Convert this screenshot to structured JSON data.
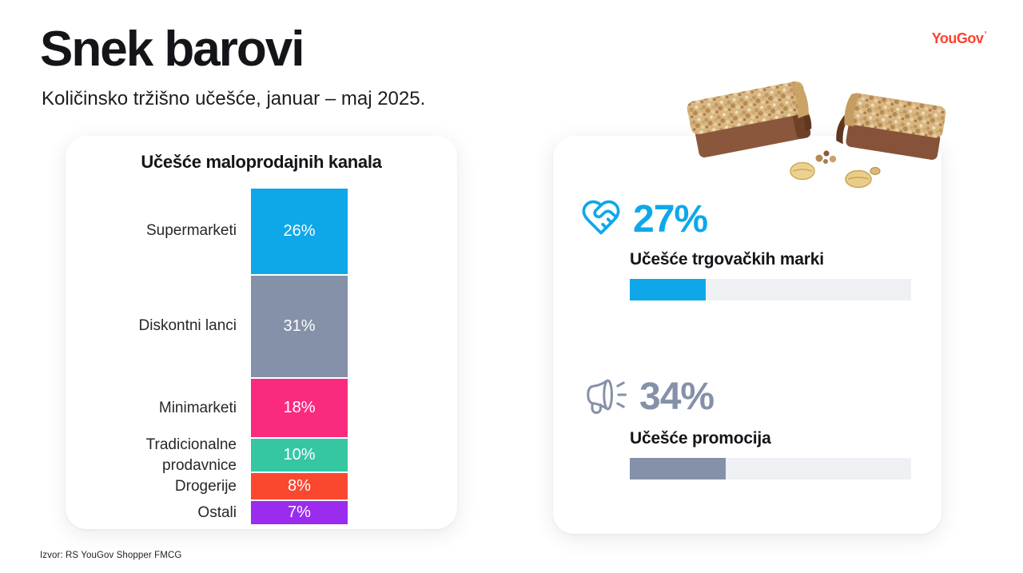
{
  "header": {
    "title": "Snek barovi",
    "subtitle": "Količinsko tržišno učešće, januar – maj 2025.",
    "logo": "YouGov",
    "logo_color": "#ff412e"
  },
  "chart_data": {
    "type": "bar",
    "stacked": true,
    "orientation": "vertical",
    "title": "Učešće maloprodajnih kanala",
    "categories": [
      "Supermarketi",
      "Diskontni lanci",
      "Minimarketi",
      "Tradicionalne prodavnice",
      "Drogerije",
      "Ostali"
    ],
    "values": [
      26,
      31,
      18,
      10,
      8,
      7
    ],
    "value_labels": [
      "26%",
      "31%",
      "18%",
      "10%",
      "8%",
      "7%"
    ],
    "unit": "%",
    "colors": [
      "#0ea8e9",
      "#8591a9",
      "#fa2a7e",
      "#35c6a2",
      "#f9482f",
      "#9a2bef"
    ],
    "legend": "none",
    "grid": false
  },
  "stats": [
    {
      "value": "27%",
      "pct": 27,
      "label": "Učešće trgovačkih marki",
      "icon": "heart-handshake-icon",
      "color": "#0ea8e9"
    },
    {
      "value": "34%",
      "pct": 34,
      "label": "Učešće promocija",
      "icon": "megaphone-icon",
      "color": "#8591a9"
    }
  ],
  "footer": {
    "source": "Izvor: RS YouGov Shopper FMCG"
  },
  "colors": {
    "progress_track": "#eef0f3",
    "text": "#17181c",
    "card_bg": "#ffffff",
    "page_bg": "#ffffff"
  }
}
